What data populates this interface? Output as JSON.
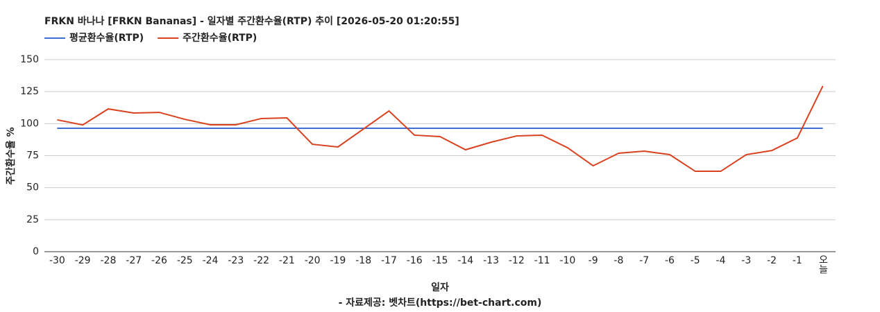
{
  "chart_data": {
    "type": "line",
    "title": "FRKN 바나나 [FRKN Bananas] - 일자별 주간환수율(RTP) 추이 [2026-05-20 01:20:55]",
    "x_label": "일자",
    "y_label": "주간환수율 %",
    "source": "- 자료제공: 벳차트(https://bet-chart.com)",
    "categories": [
      "-30",
      "-29",
      "-28",
      "-27",
      "-26",
      "-25",
      "-24",
      "-23",
      "-22",
      "-21",
      "-20",
      "-19",
      "-18",
      "-17",
      "-16",
      "-15",
      "-14",
      "-13",
      "-12",
      "-11",
      "-10",
      "-9",
      "-8",
      "-7",
      "-6",
      "-5",
      "-4",
      "-3",
      "-2",
      "-1",
      "오늘"
    ],
    "series": [
      {
        "name": "평균환수율(RTP)",
        "color": "#3c6fd1",
        "values": [
          96.4,
          96.4,
          96.4,
          96.4,
          96.4,
          96.4,
          96.4,
          96.4,
          96.4,
          96.4,
          96.4,
          96.4,
          96.4,
          96.4,
          96.4,
          96.4,
          96.4,
          96.4,
          96.4,
          96.4,
          96.4,
          96.4,
          96.4,
          96.4,
          96.4,
          96.4,
          96.4,
          96.4,
          96.4,
          96.4,
          96.4
        ]
      },
      {
        "name": "주간환수율(RTP)",
        "color": "#d9401e",
        "values": [
          103,
          99,
          111.5,
          108.3,
          108.8,
          103.4,
          99.1,
          99.1,
          104,
          104.5,
          83.9,
          81.8,
          95.8,
          109.9,
          91,
          89.9,
          79.6,
          85.5,
          90.4,
          91,
          81.2,
          67.1,
          76.9,
          78.5,
          75.8,
          62.8,
          62.8,
          75.8,
          79,
          88.8,
          129.4
        ]
      }
    ],
    "ylim": [
      0,
      150
    ],
    "yticks": [
      0,
      25,
      50,
      75,
      100,
      125,
      150
    ],
    "grid": true
  }
}
